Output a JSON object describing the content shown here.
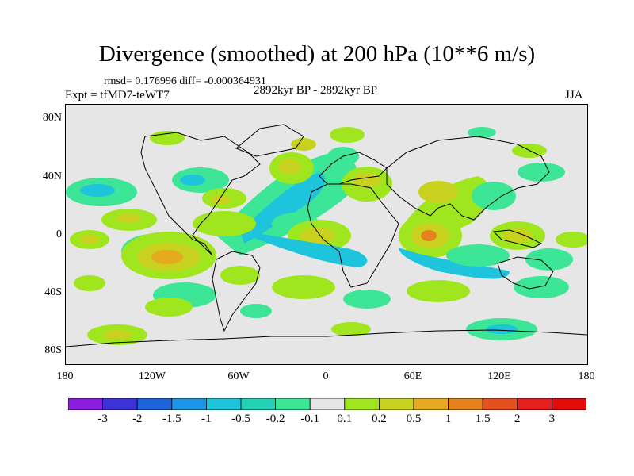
{
  "title": "Divergence (smoothed) at 200 hPa (10**6 m/s)",
  "stats": "rmsd= 0.176996  diff= -0.000364931",
  "experiment": "Expt = tfMD7-teWT7",
  "period": "2892kyr BP - 2892kyr BP",
  "season": "JJA",
  "lat_ticks": [
    "80N",
    "40N",
    "0",
    "40S",
    "80S"
  ],
  "lon_ticks": [
    "180",
    "120W",
    "60W",
    "0",
    "60E",
    "120E",
    "180"
  ],
  "colorbar": {
    "labels": [
      "-3",
      "-2",
      "-1.5",
      "-1",
      "-0.5",
      "-0.2",
      "-0.1",
      "0.1",
      "0.2",
      "0.5",
      "1",
      "1.5",
      "2",
      "3"
    ],
    "colors": [
      "#8a1ee0",
      "#3c32d8",
      "#1e64dc",
      "#1e96e6",
      "#1ec3dc",
      "#23d2b4",
      "#3ce696",
      "#e6e6e6",
      "#a0e61e",
      "#c8d21e",
      "#e6aa1e",
      "#e6821e",
      "#e6501e",
      "#e61e1e",
      "#e60a0a"
    ]
  },
  "map": {
    "background": "#e6e6e6",
    "coastline_color": "#000000"
  }
}
